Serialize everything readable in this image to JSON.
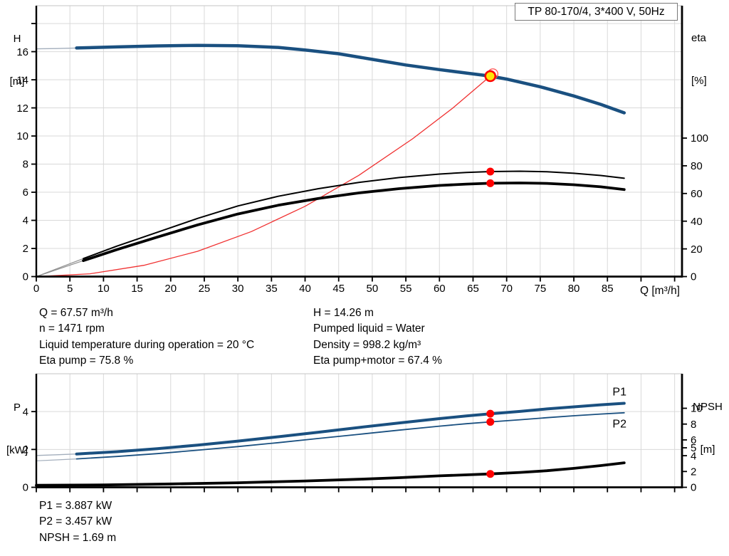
{
  "title_box": "TP 80-170/4, 3*400 V, 50Hz",
  "axis_titles": {
    "top_left": [
      "H",
      "[m]"
    ],
    "top_right": [
      "eta",
      "[%]"
    ],
    "x_title": "Q [m³/h]",
    "bottom_left": [
      "P",
      "[kW]"
    ],
    "bottom_right": [
      "NPSH",
      "[m]"
    ]
  },
  "info_top_left": [
    "Q = 67.57 m³/h",
    "n = 1471 rpm",
    "Liquid temperature during operation = 20 °C",
    "Eta pump = 75.8 %"
  ],
  "info_top_right": [
    "H = 14.26 m",
    "Pumped liquid = Water",
    "Density = 998.2 kg/m³",
    "Eta pump+motor = 67.4 %"
  ],
  "info_bottom": [
    "P1 = 3.887 kW",
    "P2 = 3.457 kW",
    "NPSH = 1.69 m"
  ],
  "colors": {
    "curve_blue": "#1a5080",
    "label_blue": "#1a5896",
    "red": "#ff0000",
    "red_light": "#f03030",
    "op_fill": "#ffe60a",
    "lead_blue_gray": "#a3aebc",
    "lead_gray": "#8f8f8f",
    "grid": "#d9d9d9",
    "top_border": "#c4c4c4",
    "axis": "#000000",
    "title_border": "#7a7a7a"
  },
  "chart_data": [
    {
      "name": "hq-eta-chart",
      "type": "line",
      "title": "TP 80-170/4, 3*400 V, 50Hz",
      "xlabel": "Q [m³/h]",
      "x_axis": {
        "min": 0,
        "max": 96.1,
        "ticks": [
          [
            0,
            "0"
          ],
          [
            5,
            "5"
          ],
          [
            10,
            "10"
          ],
          [
            15,
            "15"
          ],
          [
            20,
            "20"
          ],
          [
            25,
            "25"
          ],
          [
            30,
            "30"
          ],
          [
            35,
            "35"
          ],
          [
            40,
            "40"
          ],
          [
            45,
            "45"
          ],
          [
            50,
            "50"
          ],
          [
            55,
            "55"
          ],
          [
            60,
            "60"
          ],
          [
            65,
            "65"
          ],
          [
            70,
            "70"
          ],
          [
            75,
            "75"
          ],
          [
            80,
            "80"
          ],
          [
            85,
            "85"
          ],
          [
            90,
            ""
          ],
          [
            95,
            ""
          ]
        ]
      },
      "y_left": {
        "label": "H [m]",
        "min": 0,
        "max": 19.27,
        "ticks": [
          [
            0,
            "0"
          ],
          [
            2,
            "2"
          ],
          [
            4,
            "4"
          ],
          [
            6,
            "6"
          ],
          [
            8,
            "8"
          ],
          [
            10,
            "10"
          ],
          [
            12,
            "12"
          ],
          [
            14,
            "14"
          ],
          [
            16,
            "16"
          ],
          [
            18,
            ""
          ]
        ]
      },
      "y_right": {
        "label": "eta [%]",
        "min": 0,
        "max": 195.6,
        "ticks": [
          [
            0,
            "0"
          ],
          [
            20,
            "20"
          ],
          [
            40,
            "40"
          ],
          [
            60,
            "60"
          ],
          [
            80,
            "80"
          ],
          [
            100,
            "100"
          ]
        ]
      },
      "series": [
        {
          "name": "system-curve",
          "axis": "left",
          "color": "#f03030",
          "width": 1.3,
          "points": [
            [
              0,
              0
            ],
            [
              8,
              0.2
            ],
            [
              16,
              0.8
            ],
            [
              24,
              1.8
            ],
            [
              32,
              3.2
            ],
            [
              40,
              5.0
            ],
            [
              48,
              7.2
            ],
            [
              56,
              9.8
            ],
            [
              62,
              12.0
            ],
            [
              67.57,
              14.26
            ]
          ]
        },
        {
          "name": "head-curve-lead",
          "axis": "left",
          "color": "#a3aebc",
          "width": 1.4,
          "points": [
            [
              0,
              16.2
            ],
            [
              3,
              16.22
            ],
            [
              6,
              16.26
            ]
          ]
        },
        {
          "name": "head-curve",
          "axis": "left",
          "color": "#1a5080",
          "width": 4.5,
          "points": [
            [
              6,
              16.26
            ],
            [
              12,
              16.34
            ],
            [
              18,
              16.41
            ],
            [
              24,
              16.45
            ],
            [
              30,
              16.42
            ],
            [
              36,
              16.3
            ],
            [
              40,
              16.12
            ],
            [
              45,
              15.85
            ],
            [
              50,
              15.45
            ],
            [
              55,
              15.05
            ],
            [
              60,
              14.72
            ],
            [
              64,
              14.48
            ],
            [
              67.57,
              14.26
            ],
            [
              70,
              14.05
            ],
            [
              75,
              13.5
            ],
            [
              80,
              12.85
            ],
            [
              84,
              12.25
            ],
            [
              87.5,
              11.65
            ]
          ]
        },
        {
          "name": "eta-pump-curve-lead",
          "axis": "right",
          "color": "#8f8f8f",
          "width": 1.2,
          "points": [
            [
              0,
              0
            ],
            [
              7,
              13
            ]
          ]
        },
        {
          "name": "eta-pump-curve",
          "axis": "right",
          "color": "#000000",
          "width": 2,
          "points": [
            [
              7,
              13
            ],
            [
              12,
              22
            ],
            [
              18,
              32
            ],
            [
              24,
              42
            ],
            [
              30,
              51
            ],
            [
              36,
              58
            ],
            [
              42,
              63.5
            ],
            [
              48,
              68
            ],
            [
              54,
              71.5
            ],
            [
              60,
              74
            ],
            [
              64,
              75.2
            ],
            [
              67.57,
              75.8
            ],
            [
              72,
              76.1
            ],
            [
              76,
              75.7
            ],
            [
              80,
              74.6
            ],
            [
              84,
              73
            ],
            [
              87.5,
              71
            ]
          ]
        },
        {
          "name": "eta-pump-motor-curve-lead",
          "axis": "right",
          "color": "#8f8f8f",
          "width": 1.2,
          "points": [
            [
              0,
              0
            ],
            [
              7,
              11.5
            ]
          ]
        },
        {
          "name": "eta-pump-motor-curve",
          "axis": "right",
          "color": "#000000",
          "width": 3.8,
          "points": [
            [
              7,
              11.5
            ],
            [
              12,
              19.5
            ],
            [
              18,
              28.5
            ],
            [
              24,
              37.3
            ],
            [
              30,
              45.2
            ],
            [
              36,
              51.5
            ],
            [
              42,
              56.4
            ],
            [
              48,
              60.4
            ],
            [
              54,
              63.5
            ],
            [
              60,
              65.8
            ],
            [
              64,
              66.8
            ],
            [
              67.57,
              67.4
            ],
            [
              72,
              67.6
            ],
            [
              76,
              67.3
            ],
            [
              80,
              66.3
            ],
            [
              84,
              64.8
            ],
            [
              87.5,
              62.8
            ]
          ]
        }
      ],
      "markers": [
        {
          "type": "ghost",
          "q": 67.95,
          "v": 14.42,
          "axis": "left"
        },
        {
          "type": "dot",
          "q": 67.57,
          "v": 75.8,
          "axis": "right"
        },
        {
          "type": "dot",
          "q": 67.57,
          "v": 67.4,
          "axis": "right"
        },
        {
          "type": "op",
          "q": 67.57,
          "v": 14.26,
          "axis": "left"
        }
      ],
      "curve_labels": []
    },
    {
      "name": "power-npsh-chart",
      "type": "line",
      "xlabel": "",
      "x_axis": {
        "min": 0,
        "max": 96.1,
        "ticks": [
          [
            0,
            ""
          ],
          [
            5,
            ""
          ],
          [
            10,
            ""
          ],
          [
            15,
            ""
          ],
          [
            20,
            ""
          ],
          [
            25,
            ""
          ],
          [
            30,
            ""
          ],
          [
            35,
            ""
          ],
          [
            40,
            ""
          ],
          [
            45,
            ""
          ],
          [
            50,
            ""
          ],
          [
            55,
            ""
          ],
          [
            60,
            ""
          ],
          [
            65,
            ""
          ],
          [
            70,
            ""
          ],
          [
            75,
            ""
          ],
          [
            80,
            ""
          ],
          [
            85,
            ""
          ],
          [
            90,
            ""
          ],
          [
            95,
            ""
          ]
        ]
      },
      "y_left": {
        "label": "P [kW]",
        "min": 0,
        "max": 6.0,
        "ticks": [
          [
            0,
            "0"
          ],
          [
            2,
            "2"
          ],
          [
            4,
            "4"
          ]
        ]
      },
      "y_right": {
        "label": "NPSH [m]",
        "min": 0,
        "max": 14.37,
        "ticks": [
          [
            0,
            "0"
          ],
          [
            2,
            "2"
          ],
          [
            4,
            "4"
          ],
          [
            5,
            "5"
          ],
          [
            6,
            "6"
          ],
          [
            8,
            "8"
          ],
          [
            10,
            "10"
          ]
        ]
      },
      "series": [
        {
          "name": "p1-curve-lead",
          "axis": "left",
          "color": "#a3aebc",
          "width": 1.4,
          "points": [
            [
              0,
              1.68
            ],
            [
              3,
              1.72
            ],
            [
              6,
              1.76
            ]
          ]
        },
        {
          "name": "p1-curve",
          "axis": "left",
          "color": "#1a5080",
          "width": 4,
          "points": [
            [
              6,
              1.76
            ],
            [
              12,
              1.88
            ],
            [
              18,
              2.04
            ],
            [
              24,
              2.23
            ],
            [
              30,
              2.44
            ],
            [
              36,
              2.67
            ],
            [
              42,
              2.91
            ],
            [
              48,
              3.16
            ],
            [
              54,
              3.4
            ],
            [
              60,
              3.63
            ],
            [
              64,
              3.77
            ],
            [
              67.57,
              3.887
            ],
            [
              72,
              4.01
            ],
            [
              76,
              4.14
            ],
            [
              80,
              4.25
            ],
            [
              84,
              4.36
            ],
            [
              87.5,
              4.44
            ]
          ]
        },
        {
          "name": "p2-curve-lead",
          "axis": "left",
          "color": "#a3aebc",
          "width": 1.2,
          "points": [
            [
              0,
              1.4
            ],
            [
              3,
              1.45
            ],
            [
              6,
              1.5
            ]
          ]
        },
        {
          "name": "p2-curve",
          "axis": "left",
          "color": "#1a5080",
          "width": 1.8,
          "points": [
            [
              6,
              1.5
            ],
            [
              12,
              1.63
            ],
            [
              18,
              1.78
            ],
            [
              24,
              1.96
            ],
            [
              30,
              2.15
            ],
            [
              36,
              2.36
            ],
            [
              42,
              2.58
            ],
            [
              48,
              2.8
            ],
            [
              54,
              3.02
            ],
            [
              60,
              3.23
            ],
            [
              64,
              3.36
            ],
            [
              67.57,
              3.457
            ],
            [
              72,
              3.57
            ],
            [
              76,
              3.68
            ],
            [
              80,
              3.78
            ],
            [
              84,
              3.87
            ],
            [
              87.5,
              3.94
            ]
          ]
        },
        {
          "name": "npsh-curve",
          "axis": "right",
          "color": "#000000",
          "width": 3.8,
          "points": [
            [
              0,
              0.25
            ],
            [
              10,
              0.3
            ],
            [
              20,
              0.42
            ],
            [
              30,
              0.58
            ],
            [
              40,
              0.8
            ],
            [
              48,
              1.02
            ],
            [
              54,
              1.22
            ],
            [
              60,
              1.45
            ],
            [
              64,
              1.58
            ],
            [
              67.57,
              1.69
            ],
            [
              72,
              1.88
            ],
            [
              76,
              2.1
            ],
            [
              80,
              2.4
            ],
            [
              84,
              2.75
            ],
            [
              87.5,
              3.1
            ]
          ]
        }
      ],
      "markers": [
        {
          "type": "dot",
          "q": 67.57,
          "v": 3.887,
          "axis": "left"
        },
        {
          "type": "dot",
          "q": 67.57,
          "v": 3.457,
          "axis": "left"
        },
        {
          "type": "dot",
          "q": 67.57,
          "v": 1.69,
          "axis": "right"
        }
      ],
      "curve_labels": [
        {
          "text": "P1",
          "q": 86.8,
          "v": 5.05,
          "axis": "left",
          "color": "#1a5896"
        },
        {
          "text": "P2",
          "q": 86.8,
          "v": 3.35,
          "axis": "left",
          "color": "#1a5896"
        }
      ]
    }
  ]
}
